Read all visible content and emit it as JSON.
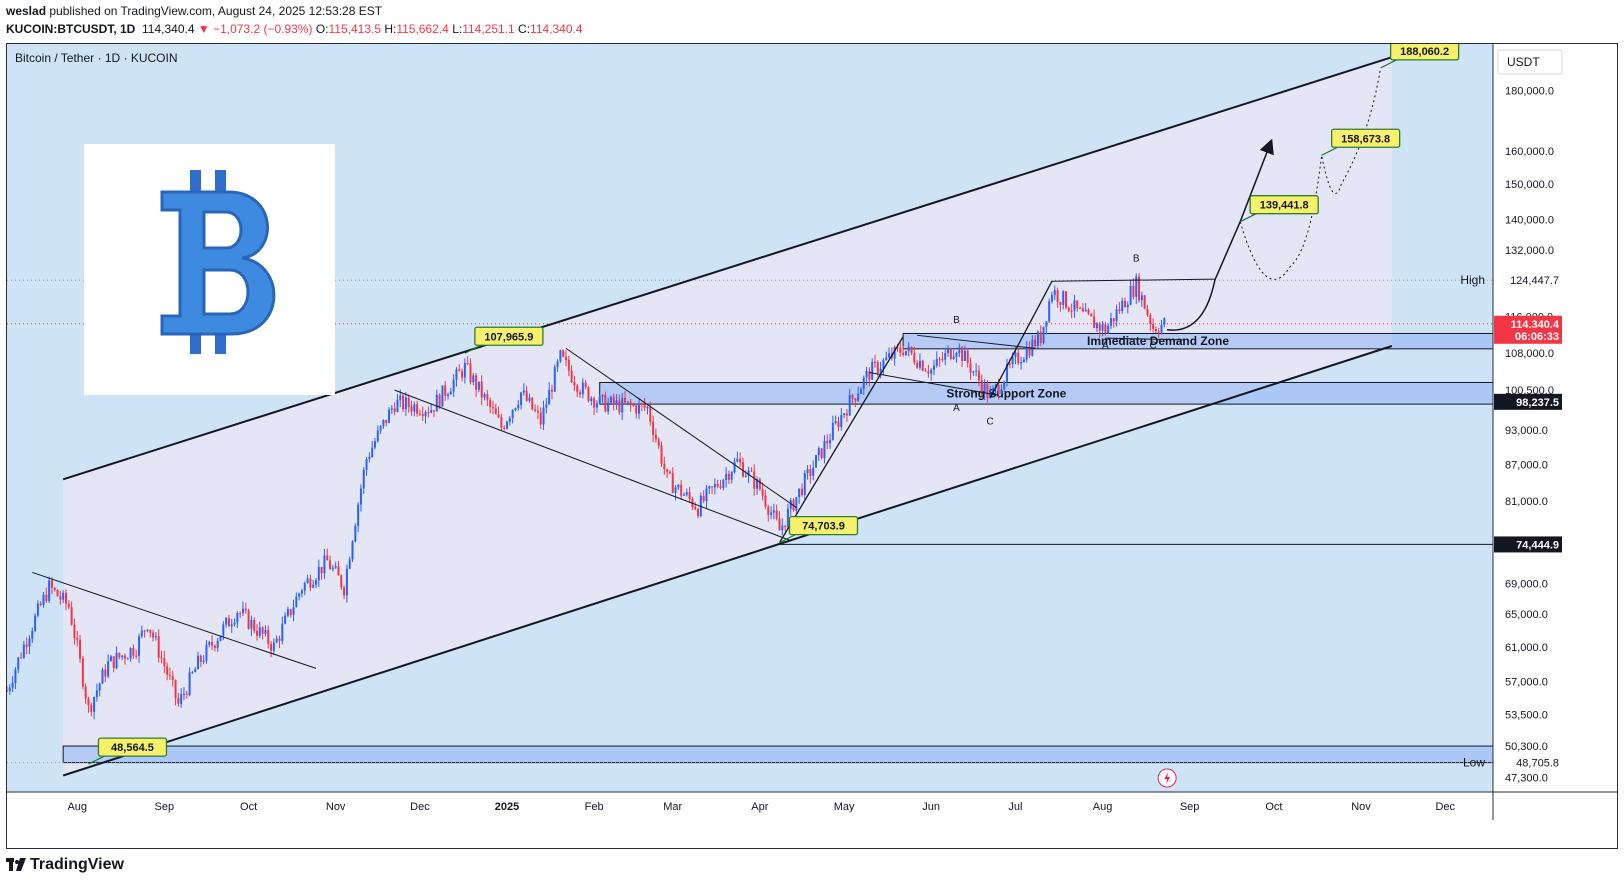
{
  "header": {
    "publisher": "weslad",
    "published_text": "published on TradingView.com, August 24, 2025 12:53:28 EST",
    "symbol": "KUCOIN:BTCUSDT, 1D",
    "last": "114,340.4",
    "change": "▼ −1,073.2 (−0.93%)",
    "o_label": "O:",
    "o": "115,413.5",
    "h_label": "H:",
    "h": "115,662.4",
    "l_label": "L:",
    "l": "114,251.1",
    "c_label": "C:",
    "c": "114,340.4"
  },
  "chart_title": "Bitcoin / Tether · 1D · KUCOIN",
  "currency": "USDT",
  "brand": "TradingView",
  "colors": {
    "up": "#089981",
    "down": "#f23645",
    "bull_candle": "#2962ff",
    "bear_candle": "#f23645",
    "zone": "#8fb3f5",
    "background": "#cfe3f7",
    "channel": "#e8e6f5"
  },
  "chart_data": {
    "type": "candlestick",
    "title": "Bitcoin / Tether · 1D · KUCOIN",
    "y_scale": "log",
    "ylim": [
      46000,
      197000
    ],
    "xlim": [
      "2024-07-07",
      "2025-12-18"
    ],
    "grid": false,
    "y_ticks": [
      "180,000.0",
      "160,000.0",
      "150,000.0",
      "140,000.0",
      "132,000.0",
      "116,000.0",
      "108,000.0",
      "100,500.0",
      "93,000.0",
      "87,000.0",
      "81,000.0",
      "75,000.0",
      "69,000.0",
      "65,000.0",
      "61,000.0",
      "57,000.0",
      "53,500.0",
      "50,300.0",
      "47,300.0"
    ],
    "x_ticks": [
      "Aug",
      "Sep",
      "Oct",
      "Nov",
      "Dec",
      "2025",
      "Feb",
      "Mar",
      "Apr",
      "May",
      "Jun",
      "Jul",
      "Aug",
      "Sep",
      "Oct",
      "Nov",
      "Dec"
    ],
    "price_path": [
      [
        "2024-07-07",
        56000
      ],
      [
        "2024-07-14",
        62000
      ],
      [
        "2024-07-22",
        68500
      ],
      [
        "2024-07-29",
        66000
      ],
      [
        "2024-08-05",
        54000
      ],
      [
        "2024-08-12",
        59000
      ],
      [
        "2024-08-22",
        61000
      ],
      [
        "2024-08-26",
        64000
      ],
      [
        "2024-09-06",
        54500
      ],
      [
        "2024-09-13",
        59000
      ],
      [
        "2024-09-27",
        65500
      ],
      [
        "2024-10-10",
        61000
      ],
      [
        "2024-10-20",
        68500
      ],
      [
        "2024-10-29",
        72000
      ],
      [
        "2024-11-04",
        68500
      ],
      [
        "2024-11-12",
        88000
      ],
      [
        "2024-11-22",
        98000
      ],
      [
        "2024-12-05",
        97000
      ],
      [
        "2024-12-17",
        105000
      ],
      [
        "2024-12-30",
        93500
      ],
      [
        "2025-01-06",
        100000
      ],
      [
        "2025-01-13",
        94500
      ],
      [
        "2025-01-20",
        107000
      ],
      [
        "2025-01-27",
        101000
      ],
      [
        "2025-02-03",
        98000
      ],
      [
        "2025-02-20",
        97000
      ],
      [
        "2025-02-27",
        84500
      ],
      [
        "2025-03-10",
        80000
      ],
      [
        "2025-03-24",
        87500
      ],
      [
        "2025-04-01",
        83000
      ],
      [
        "2025-04-08",
        76500
      ],
      [
        "2025-04-21",
        87500
      ],
      [
        "2025-05-01",
        96500
      ],
      [
        "2025-05-10",
        104000
      ],
      [
        "2025-05-22",
        109000
      ],
      [
        "2025-06-01",
        104500
      ],
      [
        "2025-06-10",
        109500
      ],
      [
        "2025-06-22",
        99000
      ],
      [
        "2025-07-01",
        106500
      ],
      [
        "2025-07-10",
        111500
      ],
      [
        "2025-07-14",
        122000
      ],
      [
        "2025-07-25",
        116000
      ],
      [
        "2025-08-02",
        113000
      ],
      [
        "2025-08-13",
        123500
      ],
      [
        "2025-08-19",
        113500
      ],
      [
        "2025-08-23",
        114340
      ]
    ],
    "projection": {
      "solid": [
        [
          "2025-08-24",
          113000
        ],
        [
          "2025-09-10",
          124500
        ],
        [
          "2025-09-19",
          139442
        ],
        [
          "2025-09-30",
          163000
        ]
      ],
      "dotted": [
        [
          "2025-09-19",
          139442
        ],
        [
          "2025-10-07",
          128000
        ],
        [
          "2025-10-18",
          158674
        ],
        [
          "2025-10-25",
          150000
        ],
        [
          "2025-11-08",
          188060
        ]
      ]
    },
    "labels": [
      {
        "text": "188,060.2",
        "date": "2025-11-08",
        "value": 188060.2
      },
      {
        "text": "158,673.8",
        "date": "2025-10-18",
        "value": 158673.8
      },
      {
        "text": "139,441.8",
        "date": "2025-09-19",
        "value": 139441.8
      },
      {
        "text": "107,965.9",
        "date": "2024-12-17",
        "value": 107965.9
      },
      {
        "text": "74,703.9",
        "date": "2025-04-08",
        "value": 74703.9
      },
      {
        "text": "48,564.5",
        "date": "2024-08-05",
        "value": 48564.5
      }
    ],
    "zones": [
      {
        "name": "Immediate Demand Zone",
        "y0": 108900,
        "y1": 112200,
        "from": "2025-05-22",
        "to": "2025-12-18"
      },
      {
        "name": "Strong Support Zone",
        "y0": 97800,
        "y1": 102000,
        "from": "2025-02-03",
        "to": "2025-12-18"
      },
      {
        "name": "",
        "y0": 48705.8,
        "y1": 50300,
        "from": "2024-07-27",
        "to": "2025-12-18"
      }
    ],
    "price_tags": [
      {
        "text": "114,340.4",
        "value": 114340.4,
        "color": "#f23645"
      },
      {
        "text": "06:06:33",
        "value": 111700,
        "color": "#f23645"
      },
      {
        "text": "98,237.5",
        "value": 98237.5,
        "color": "#131722"
      },
      {
        "text": "74,444.9",
        "value": 74444.9,
        "color": "#131722"
      },
      {
        "text": "124,447.7",
        "value": 124447.7,
        "color": "none"
      },
      {
        "text": "48,705.8",
        "value": 48705.8,
        "color": "none"
      }
    ],
    "level_labels": [
      {
        "text": "High",
        "value": 124447.7
      },
      {
        "text": "Low",
        "value": 48705.8
      }
    ],
    "wave_labels": [
      {
        "text": "B",
        "date": "2025-06-10",
        "value": 114500
      },
      {
        "text": "A",
        "date": "2025-06-10",
        "value": 96500
      },
      {
        "text": "C",
        "date": "2025-06-22",
        "value": 94000
      },
      {
        "text": "B",
        "date": "2025-08-13",
        "value": 129000
      },
      {
        "text": "A",
        "date": "2025-08-02",
        "value": 109000
      },
      {
        "text": "C",
        "date": "2025-08-19",
        "value": 109000
      }
    ]
  }
}
